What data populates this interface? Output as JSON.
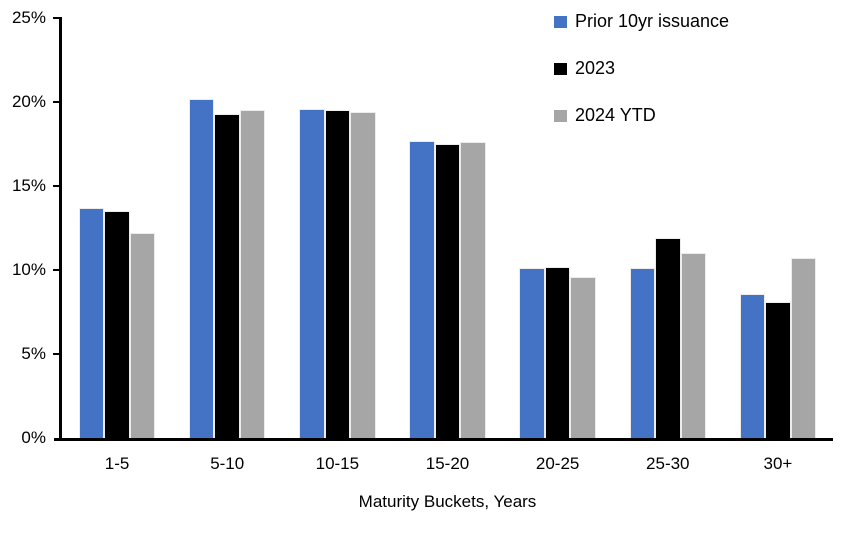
{
  "chart_data": {
    "type": "bar",
    "title": "",
    "xlabel": "Maturity Buckets, Years",
    "ylabel": "",
    "categories": [
      "1-5",
      "5-10",
      "10-15",
      "15-20",
      "20-25",
      "25-30",
      "30+"
    ],
    "series": [
      {
        "name": "Prior 10yr issuance",
        "color": "#4472C4",
        "values": [
          13.7,
          20.2,
          19.6,
          17.7,
          10.1,
          10.1,
          8.6
        ]
      },
      {
        "name": "2023",
        "color": "#000000",
        "values": [
          13.5,
          19.3,
          19.5,
          17.5,
          10.2,
          11.9,
          8.1
        ]
      },
      {
        "name": "2024 YTD",
        "color": "#A6A6A6",
        "values": [
          12.2,
          19.5,
          19.4,
          17.6,
          9.6,
          11.0,
          10.7
        ]
      }
    ],
    "ylim": [
      0,
      25
    ],
    "ytick_step": 5,
    "ytick_labels": [
      "0%",
      "5%",
      "10%",
      "15%",
      "20%",
      "25%"
    ],
    "axis_color": "#000000",
    "grid": false,
    "legend_position": "top-right"
  }
}
